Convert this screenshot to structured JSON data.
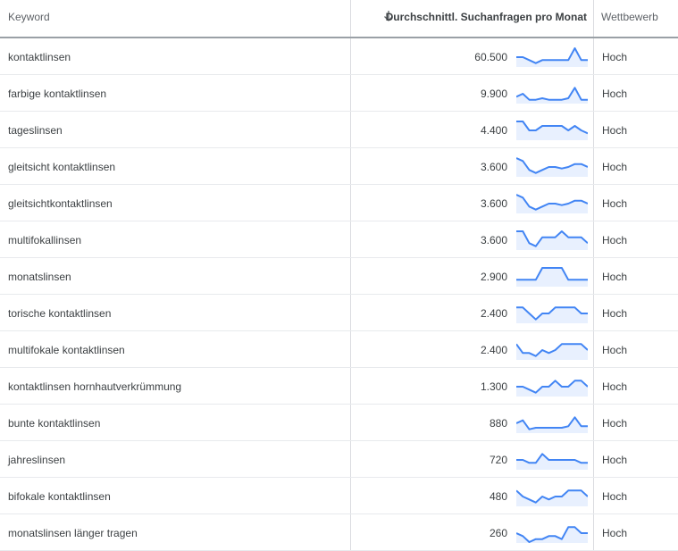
{
  "header": {
    "keyword": "Keyword",
    "avg_searches": "Durchschnittl. Suchanfragen pro Monat",
    "sort_icon": "arrow-down-icon",
    "competition": "Wettbewerb"
  },
  "colors": {
    "trend_line": "#4285f4",
    "trend_fill": "#e8f0fe"
  },
  "rows": [
    {
      "keyword": "kontaktlinsen",
      "volume": "60.500",
      "competition": "Hoch",
      "trend": [
        5,
        5,
        4,
        3,
        4,
        4,
        4,
        4,
        4,
        8,
        4,
        4
      ]
    },
    {
      "keyword": "farbige kontaktlinsen",
      "volume": "9.900",
      "competition": "Hoch",
      "trend": [
        4,
        5,
        3,
        3,
        3.5,
        3,
        3,
        3,
        3.5,
        7,
        3,
        3
      ]
    },
    {
      "keyword": "tageslinsen",
      "volume": "4.400",
      "competition": "Hoch",
      "trend": [
        8,
        8,
        5,
        5,
        6.5,
        6.5,
        6.5,
        6.5,
        5,
        6.5,
        5,
        4
      ]
    },
    {
      "keyword": "gleitsicht kontaktlinsen",
      "volume": "3.600",
      "competition": "Hoch",
      "trend": [
        8,
        7,
        4,
        3,
        4,
        5,
        5,
        4.5,
        5,
        6,
        6,
        5
      ]
    },
    {
      "keyword": "gleitsichtkontaktlinsen",
      "volume": "3.600",
      "competition": "Hoch",
      "trend": [
        8,
        7,
        4,
        3,
        4,
        5,
        5,
        4.5,
        5,
        6,
        6,
        5
      ]
    },
    {
      "keyword": "multifokallinsen",
      "volume": "3.600",
      "competition": "Hoch",
      "trend": [
        8,
        8,
        4,
        3,
        6,
        6,
        6,
        8,
        6,
        6,
        6,
        4
      ]
    },
    {
      "keyword": "monatslinsen",
      "volume": "2.900",
      "competition": "Hoch",
      "trend": [
        4,
        4,
        4,
        4,
        8,
        8,
        8,
        8,
        4,
        4,
        4,
        4
      ]
    },
    {
      "keyword": "torische kontaktlinsen",
      "volume": "2.400",
      "competition": "Hoch",
      "trend": [
        7,
        7,
        5,
        3,
        5,
        5,
        7,
        7,
        7,
        7,
        5,
        5
      ]
    },
    {
      "keyword": "multifokale kontaktlinsen",
      "volume": "2.400",
      "competition": "Hoch",
      "trend": [
        7,
        4,
        4,
        3,
        5,
        4,
        5,
        7,
        7,
        7,
        7,
        5
      ]
    },
    {
      "keyword": "kontaktlinsen hornhautverkrümmung",
      "volume": "1.300",
      "competition": "Hoch",
      "trend": [
        5,
        5,
        4,
        3,
        5,
        5,
        7,
        5,
        5,
        7,
        7,
        5
      ]
    },
    {
      "keyword": "bunte kontaktlinsen",
      "volume": "880",
      "competition": "Hoch",
      "trend": [
        5,
        6,
        3,
        3.5,
        3.5,
        3.5,
        3.5,
        3.5,
        4,
        7,
        4,
        4
      ]
    },
    {
      "keyword": "jahreslinsen",
      "volume": "720",
      "competition": "Hoch",
      "trend": [
        5,
        5,
        4,
        4,
        7,
        5,
        5,
        5,
        5,
        5,
        4,
        4
      ]
    },
    {
      "keyword": "bifokale kontaktlinsen",
      "volume": "480",
      "competition": "Hoch",
      "trend": [
        7,
        5,
        4,
        3,
        5,
        4,
        5,
        5,
        7,
        7,
        7,
        5
      ]
    },
    {
      "keyword": "monatslinsen länger tragen",
      "volume": "260",
      "competition": "Hoch",
      "trend": [
        5,
        4,
        2,
        3,
        3,
        4,
        4,
        3,
        7,
        7,
        5,
        5
      ]
    }
  ]
}
